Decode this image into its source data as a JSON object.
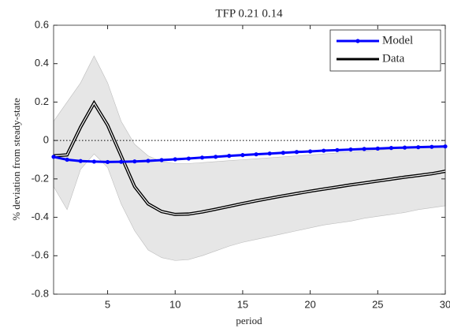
{
  "chart_data": {
    "type": "line",
    "title": "TFP 0.21 0.14",
    "x_label": "period",
    "y_label": "% deviation from steady-state",
    "x": [
      1,
      2,
      3,
      4,
      5,
      6,
      7,
      8,
      9,
      10,
      11,
      12,
      13,
      14,
      15,
      16,
      17,
      18,
      19,
      20,
      21,
      22,
      23,
      24,
      25,
      26,
      27,
      28,
      29,
      30
    ],
    "series": [
      {
        "name": "Model",
        "color": "#0000ff",
        "markers": true,
        "values": [
          -0.085,
          -0.1,
          -0.107,
          -0.11,
          -0.112,
          -0.111,
          -0.109,
          -0.106,
          -0.102,
          -0.098,
          -0.094,
          -0.089,
          -0.085,
          -0.08,
          -0.076,
          -0.072,
          -0.068,
          -0.064,
          -0.06,
          -0.057,
          -0.053,
          -0.05,
          -0.047,
          -0.044,
          -0.042,
          -0.039,
          -0.037,
          -0.035,
          -0.033,
          -0.031
        ]
      },
      {
        "name": "Data",
        "color": "#000000",
        "markers": false,
        "values": [
          -0.08,
          -0.075,
          0.07,
          0.195,
          0.08,
          -0.08,
          -0.24,
          -0.33,
          -0.37,
          -0.385,
          -0.383,
          -0.372,
          -0.358,
          -0.343,
          -0.328,
          -0.314,
          -0.301,
          -0.288,
          -0.276,
          -0.264,
          -0.253,
          -0.242,
          -0.231,
          -0.221,
          -0.211,
          -0.201,
          -0.191,
          -0.182,
          -0.173,
          -0.16
        ]
      }
    ],
    "band": {
      "color": "#e6e6e6",
      "upper": [
        0.1,
        0.2,
        0.3,
        0.44,
        0.3,
        0.1,
        -0.02,
        -0.08,
        -0.11,
        -0.12,
        -0.12,
        -0.115,
        -0.11,
        -0.105,
        -0.1,
        -0.095,
        -0.09,
        -0.085,
        -0.08,
        -0.075,
        -0.07,
        -0.065,
        -0.06,
        -0.055,
        -0.05,
        -0.045,
        -0.04,
        -0.035,
        -0.03,
        -0.025
      ],
      "lower": [
        -0.24,
        -0.36,
        -0.15,
        -0.07,
        -0.14,
        -0.33,
        -0.47,
        -0.57,
        -0.61,
        -0.625,
        -0.62,
        -0.6,
        -0.575,
        -0.55,
        -0.53,
        -0.515,
        -0.5,
        -0.485,
        -0.47,
        -0.455,
        -0.44,
        -0.43,
        -0.42,
        -0.405,
        -0.395,
        -0.385,
        -0.375,
        -0.36,
        -0.35,
        -0.34
      ]
    },
    "reference_line": 0,
    "xlim": [
      1,
      30
    ],
    "xticks": [
      5,
      10,
      15,
      20,
      25,
      30
    ],
    "ylim": [
      -0.8,
      0.6
    ],
    "yticks": [
      -0.8,
      -0.6,
      -0.4,
      -0.2,
      0,
      0.2,
      0.4,
      0.6
    ],
    "legend": "top-right"
  }
}
